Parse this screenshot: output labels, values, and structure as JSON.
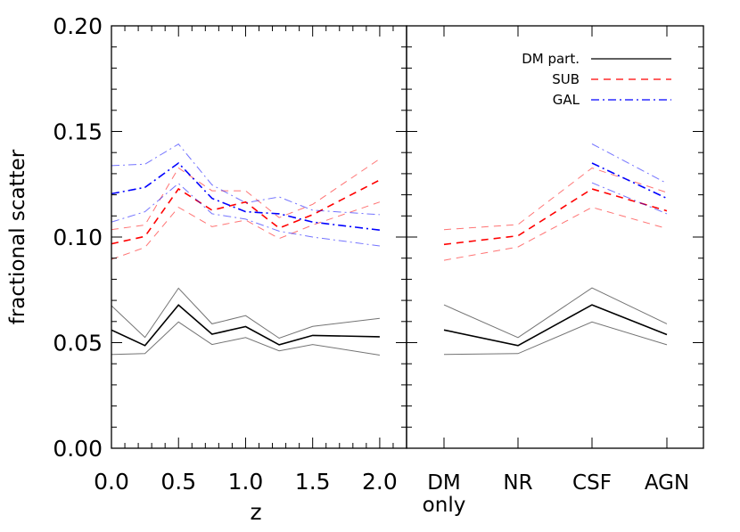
{
  "chart_data": [
    {
      "type": "line",
      "panel": "left",
      "xlabel": "z",
      "ylabel": "fractional scatter",
      "xlim": [
        0.0,
        2.2
      ],
      "ylim": [
        0.0,
        0.2
      ],
      "xticks": [
        "0.0",
        "0.5",
        "1.0",
        "1.5",
        "2.0"
      ],
      "yticks": [
        "0.00",
        "0.05",
        "0.10",
        "0.15",
        "0.20"
      ],
      "x": [
        0.0,
        0.25,
        0.5,
        0.75,
        1.0,
        1.25,
        1.5,
        2.0
      ],
      "series": [
        {
          "name": "DM part.",
          "color": "#000000",
          "style": "solid",
          "values": [
            0.056,
            0.0486,
            0.0678,
            0.054,
            0.0576,
            0.049,
            0.0534,
            0.0528
          ],
          "upper": [
            0.0675,
            0.0525,
            0.0758,
            0.0589,
            0.0628,
            0.0521,
            0.0577,
            0.0615
          ],
          "lower": [
            0.0444,
            0.0448,
            0.0598,
            0.0491,
            0.0524,
            0.0461,
            0.0491,
            0.0441
          ]
        },
        {
          "name": "SUB",
          "color": "#ff0000",
          "style": "dashed",
          "values": [
            0.0968,
            0.1003,
            0.1228,
            0.1127,
            0.1166,
            0.1042,
            0.1106,
            0.127
          ],
          "upper": [
            0.1035,
            0.1057,
            0.1327,
            0.1219,
            0.1219,
            0.1092,
            0.1155,
            0.137
          ],
          "lower": [
            0.0894,
            0.0951,
            0.1141,
            0.1049,
            0.108,
            0.0993,
            0.1057,
            0.1166
          ]
        },
        {
          "name": "GAL",
          "color": "#0000ff",
          "style": "dashdot",
          "values": [
            0.1205,
            0.1235,
            0.135,
            0.1183,
            0.112,
            0.111,
            0.1071,
            0.1033
          ],
          "upper": [
            0.1338,
            0.1345,
            0.144,
            0.1247,
            0.1162,
            0.119,
            0.1127,
            0.1106
          ],
          "lower": [
            0.1071,
            0.112,
            0.1254,
            0.111,
            0.1085,
            0.1028,
            0.1,
            0.0958
          ]
        }
      ]
    },
    {
      "type": "line",
      "panel": "right",
      "categories": [
        "DM\nonly",
        "NR",
        "CSF",
        "AGN"
      ],
      "category_lines": [
        [
          "DM",
          "only"
        ],
        [
          "NR"
        ],
        [
          "CSF"
        ],
        [
          "AGN"
        ]
      ],
      "ylim": [
        0.0,
        0.2
      ],
      "legend": "top-right",
      "series": [
        {
          "name": "DM part.",
          "color": "#000000",
          "style": "solid",
          "values": [
            0.056,
            0.0486,
            0.0679,
            0.0538
          ],
          "upper": [
            0.0679,
            0.0524,
            0.0759,
            0.0589
          ],
          "lower": [
            0.0444,
            0.0448,
            0.0598,
            0.049
          ]
        },
        {
          "name": "SUB",
          "color": "#ff0000",
          "style": "dashed",
          "values": [
            0.0965,
            0.1006,
            0.1228,
            0.1124
          ],
          "upper": [
            0.1035,
            0.1059,
            0.1327,
            0.1211
          ],
          "lower": [
            0.089,
            0.0953,
            0.1141,
            0.104
          ]
        },
        {
          "name": "GAL",
          "color": "#0000ff",
          "style": "dashdot",
          "values": [
            null,
            null,
            0.135,
            0.1183
          ],
          "upper": [
            null,
            null,
            0.1441,
            0.1254
          ],
          "lower": [
            null,
            null,
            0.1257,
            0.111
          ]
        }
      ]
    }
  ]
}
